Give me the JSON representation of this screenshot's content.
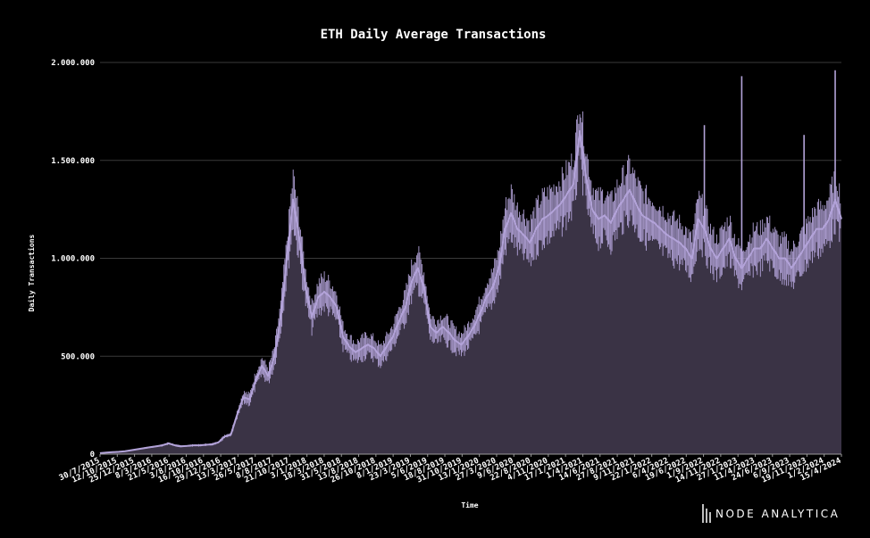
{
  "chart_data": {
    "type": "area",
    "title": "ETH Daily Average Transactions",
    "xlabel": "Time",
    "ylabel": "Daily Transactions",
    "ylim": [
      0,
      2000000
    ],
    "yticks": [
      0,
      500000,
      1000000,
      1500000,
      2000000
    ],
    "ytick_labels": [
      "0",
      "500.000",
      "1.000.000",
      "1.500.000",
      "2.000.000"
    ],
    "xtick_labels": [
      "30/7/2015",
      "12/10/2015",
      "25/12/2015",
      "8/3/2016",
      "21/5/2016",
      "3/8/2016",
      "16/10/2016",
      "29/12/2016",
      "13/3/2017",
      "26/5/2017",
      "8/8/2017",
      "21/10/2017",
      "3/1/2018",
      "18/3/2018",
      "31/5/2018",
      "13/8/2018",
      "26/10/2018",
      "8/1/2019",
      "23/3/2019",
      "5/6/2019",
      "18/8/2019",
      "31/10/2019",
      "13/1/2020",
      "27/3/2020",
      "9/6/2020",
      "22/8/2020",
      "4/11/2020",
      "17/1/2021",
      "1/4/2021",
      "14/6/2021",
      "27/8/2021",
      "9/11/2021",
      "22/1/2022",
      "6/4/2022",
      "19/6/2022",
      "1/9/2022",
      "14/11/2022",
      "27/1/2023",
      "11/4/2023",
      "24/6/2023",
      "6/9/2023",
      "19/11/2023",
      "1/2/2024",
      "15/4/2024"
    ],
    "grid": true,
    "line_color": "#b3a3d9",
    "fill_color": "#3a3345",
    "series": [
      {
        "values": [
          5000,
          8000,
          10000,
          12000,
          15000,
          20000,
          25000,
          30000,
          35000,
          40000,
          45000,
          55000,
          45000,
          40000,
          42000,
          45000,
          45000,
          48000,
          50000,
          60000,
          90000,
          100000,
          200000,
          290000,
          280000,
          380000,
          450000,
          400000,
          500000,
          700000,
          1000000,
          1300000,
          1100000,
          850000,
          700000,
          800000,
          830000,
          800000,
          750000,
          600000,
          550000,
          520000,
          540000,
          560000,
          540000,
          500000,
          550000,
          600000,
          680000,
          750000,
          880000,
          950000,
          850000,
          650000,
          620000,
          650000,
          620000,
          580000,
          560000,
          600000,
          650000,
          720000,
          800000,
          850000,
          950000,
          1150000,
          1230000,
          1150000,
          1120000,
          1080000,
          1150000,
          1200000,
          1220000,
          1250000,
          1280000,
          1330000,
          1380000,
          1650000,
          1420000,
          1250000,
          1200000,
          1220000,
          1180000,
          1250000,
          1300000,
          1350000,
          1280000,
          1220000,
          1200000,
          1180000,
          1150000,
          1120000,
          1100000,
          1080000,
          1050000,
          1000000,
          1200000,
          1150000,
          1050000,
          1000000,
          1050000,
          1100000,
          1000000,
          950000,
          1000000,
          1050000,
          1050000,
          1100000,
          1050000,
          1000000,
          1000000,
          950000,
          1000000,
          1050000,
          1100000,
          1150000,
          1150000,
          1200000,
          1300000,
          1200000
        ]
      }
    ],
    "spikes": [
      {
        "index": 97,
        "value": 1680000
      },
      {
        "index": 103,
        "value": 1930000
      },
      {
        "index": 113,
        "value": 1630000
      },
      {
        "index": 118,
        "value": 1960000
      }
    ]
  },
  "branding": {
    "logo_text": "NODE ANALYTICA"
  }
}
